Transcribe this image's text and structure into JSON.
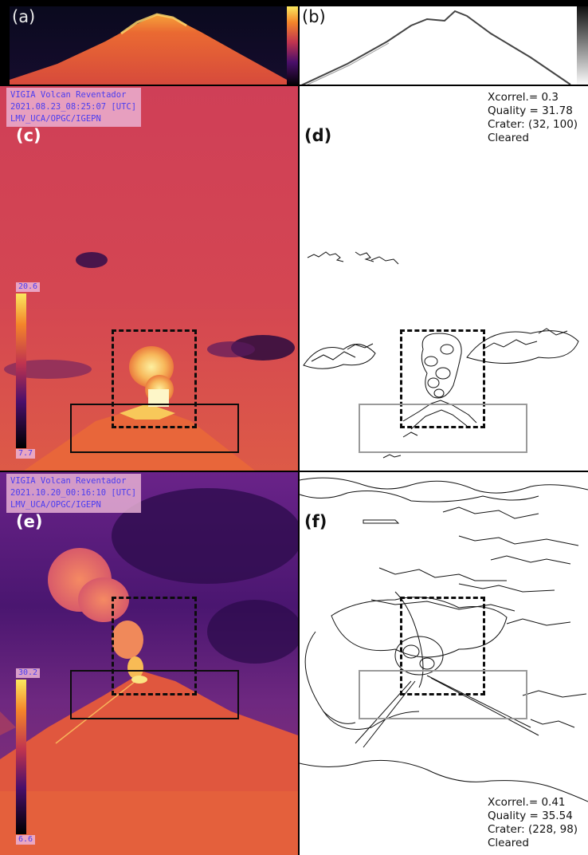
{
  "panels": {
    "a": {
      "label": "(a)"
    },
    "b": {
      "label": "(b)"
    },
    "c": {
      "label": "(c)",
      "banner": [
        "VIGIA Volcan Reventador",
        "2021.08.23_08:25:07 [UTC]",
        "LMV_UCA/OPGC/IGEPN"
      ],
      "cbar_max": "20.6",
      "cbar_min": "7.7"
    },
    "d": {
      "label": "(d)",
      "stats": [
        "Xcorrel.= 0.3",
        "Quality = 31.78",
        "Crater: (32, 100)",
        "Cleared"
      ]
    },
    "e": {
      "label": "(e)",
      "banner": [
        "VIGIA Volcan Reventador",
        "2021.10.20_00:16:10 [UTC]",
        "LMV_UCA/OPGC/IGEPN"
      ],
      "cbar_max": "30.2",
      "cbar_min": "6.6"
    },
    "f": {
      "label": "(f)",
      "stats": [
        "Xcorrel.= 0.41",
        "Quality = 35.54",
        "Crater: (228, 98)",
        "Cleared"
      ]
    }
  },
  "colors": {
    "inferno_dark": "#0d0822",
    "inferno_purple": "#5b1a7a",
    "inferno_red": "#d9413f",
    "inferno_orange": "#f07b34",
    "inferno_yellow": "#f8e06a",
    "banner_bg": "#ecb4d7",
    "banner_text": "#4b3df0",
    "box_grey": "#9a9a9a"
  }
}
